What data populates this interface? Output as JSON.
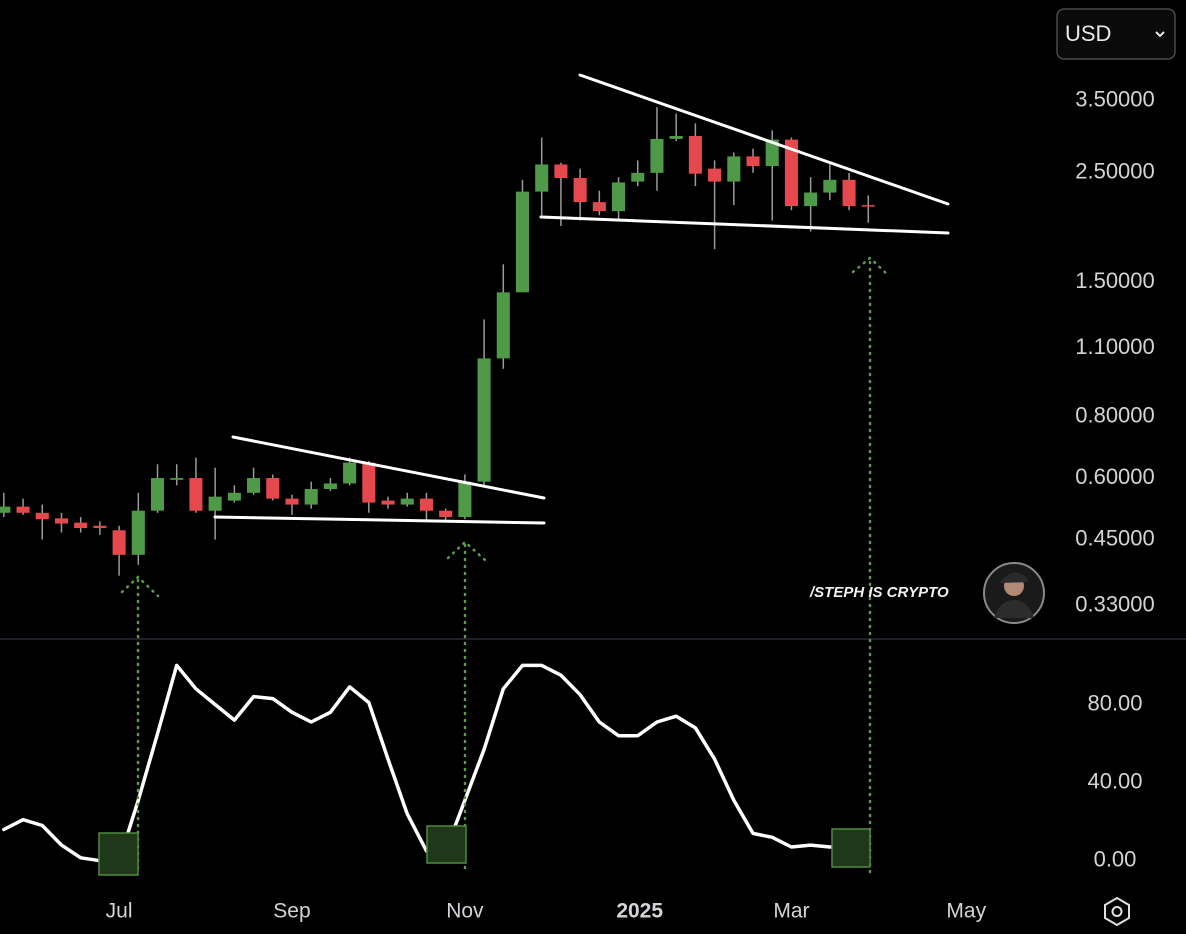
{
  "currency": "USD",
  "watermark": "/STEPH IS CRYPTO",
  "chart_data": [
    {
      "type": "candlestick",
      "open": [
        0.51,
        0.525,
        0.51,
        0.497,
        0.487,
        0.48,
        0.47,
        0.419,
        0.515,
        0.595,
        0.6,
        0.515,
        0.54,
        0.56,
        0.6,
        0.545,
        0.53,
        0.57,
        0.585,
        0.645,
        0.54,
        0.53,
        0.545,
        0.515,
        0.5,
        0.59,
        1.05,
        1.43,
        2.29,
        2.6,
        2.44,
        2.18,
        2.09,
        2.4,
        2.5,
        2.93,
        2.97,
        2.55,
        2.4,
        2.7,
        2.58,
        2.92,
        2.14,
        2.28,
        2.42,
        2.15
      ],
      "high": [
        0.56,
        0.545,
        0.53,
        0.51,
        0.5,
        0.49,
        0.48,
        0.56,
        0.64,
        0.64,
        0.66,
        0.63,
        0.58,
        0.63,
        0.61,
        0.555,
        0.59,
        0.6,
        0.66,
        0.65,
        0.55,
        0.56,
        0.56,
        0.52,
        0.61,
        1.26,
        1.63,
        2.42,
        2.95,
        2.62,
        2.55,
        2.3,
        2.45,
        2.65,
        3.4,
        3.3,
        3.15,
        2.65,
        2.75,
        2.8,
        3.05,
        2.95,
        2.45,
        2.6,
        2.5,
        2.25
      ],
      "low": [
        0.5,
        0.505,
        0.45,
        0.465,
        0.465,
        0.46,
        0.38,
        0.4,
        0.51,
        0.58,
        0.51,
        0.45,
        0.535,
        0.555,
        0.54,
        0.505,
        0.52,
        0.565,
        0.58,
        0.51,
        0.52,
        0.525,
        0.49,
        0.49,
        0.495,
        0.58,
        1.0,
        1.43,
        2.05,
        1.95,
        2.0,
        2.05,
        2.0,
        2.35,
        2.3,
        2.9,
        2.35,
        1.75,
        2.15,
        2.5,
        2.0,
        2.1,
        1.9,
        2.2,
        2.1,
        1.98
      ],
      "close": [
        0.525,
        0.51,
        0.495,
        0.485,
        0.475,
        0.475,
        0.419,
        0.515,
        0.6,
        0.6,
        0.515,
        0.55,
        0.56,
        0.6,
        0.545,
        0.53,
        0.57,
        0.585,
        0.645,
        0.535,
        0.53,
        0.545,
        0.515,
        0.5,
        0.59,
        1.05,
        1.43,
        2.29,
        2.6,
        2.44,
        2.18,
        2.09,
        2.39,
        2.5,
        2.93,
        2.97,
        2.49,
        2.4,
        2.7,
        2.58,
        2.92,
        2.14,
        2.28,
        2.42,
        2.14,
        2.14
      ],
      "up_color": "#4f9a48",
      "down_color": "#e5484d",
      "wick_color": "#9a9a9a",
      "log_scale": true,
      "ylim": [
        0.284,
        5.61
      ],
      "yticks": [
        {
          "value": 0.33,
          "label": "0.33000"
        },
        {
          "value": 0.45,
          "label": "0.45000"
        },
        {
          "value": 0.6,
          "label": "0.60000"
        },
        {
          "value": 0.8,
          "label": "0.80000"
        },
        {
          "value": 1.1,
          "label": "1.10000"
        },
        {
          "value": 1.5,
          "label": "1.50000"
        },
        {
          "value": 2.5,
          "label": "2.50000"
        },
        {
          "value": 3.5,
          "label": "3.50000"
        }
      ],
      "xlim": [
        -0.2,
        54.2
      ]
    },
    {
      "type": "line",
      "values": [
        16,
        21,
        18,
        8,
        1.5,
        0,
        0,
        31,
        65,
        100,
        88,
        80,
        72,
        84,
        83,
        76,
        71,
        76,
        89,
        81,
        52,
        24,
        5,
        5,
        31,
        57,
        88,
        100,
        100,
        95,
        85,
        71,
        64,
        64,
        71,
        74,
        68,
        52,
        31,
        14,
        12,
        7,
        8,
        7,
        7,
        5
      ],
      "color": "#ffffff",
      "ylim": [
        -15,
        113
      ],
      "yticks": [
        {
          "value": 0,
          "label": "0.00"
        },
        {
          "value": 40,
          "label": "40.00"
        },
        {
          "value": 80,
          "label": "80.00"
        }
      ],
      "xlim": [
        -0.2,
        54.2
      ],
      "xticks": [
        {
          "value": 6,
          "label": "Jul"
        },
        {
          "value": 15,
          "label": "Sep"
        },
        {
          "value": 24,
          "label": "Nov"
        },
        {
          "value": 33.1,
          "label": "2025"
        },
        {
          "value": 41,
          "label": "Mar"
        },
        {
          "value": 50.1,
          "label": "May"
        }
      ]
    }
  ]
}
